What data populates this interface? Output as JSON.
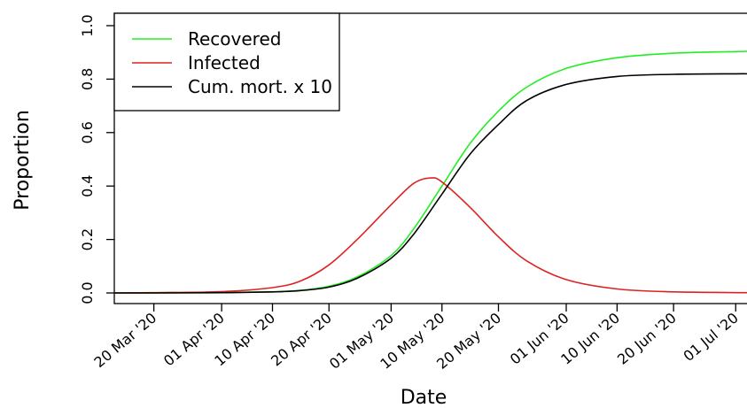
{
  "chart_data": {
    "type": "line",
    "xlabel": "Date",
    "ylabel": "Proportion",
    "ylim": [
      0.0,
      1.0
    ],
    "xlim": [
      "2020-03-13",
      "2020-07-03"
    ],
    "y_ticks": [
      {
        "value": 0.0,
        "label": "0.0"
      },
      {
        "value": 0.2,
        "label": "0.2"
      },
      {
        "value": 0.4,
        "label": "0.4"
      },
      {
        "value": 0.6,
        "label": "0.6"
      },
      {
        "value": 0.8,
        "label": "0.8"
      },
      {
        "value": 1.0,
        "label": "1.0"
      }
    ],
    "x_ticks": [
      {
        "date": "2020-03-20",
        "label": "20 Mar '20"
      },
      {
        "date": "2020-04-01",
        "label": "01 Apr '20"
      },
      {
        "date": "2020-04-10",
        "label": "10 Apr '20"
      },
      {
        "date": "2020-04-20",
        "label": "20 Apr '20"
      },
      {
        "date": "2020-05-01",
        "label": "01 May '20"
      },
      {
        "date": "2020-05-10",
        "label": "10 May '20"
      },
      {
        "date": "2020-05-20",
        "label": "20 May '20"
      },
      {
        "date": "2020-06-01",
        "label": "01 Jun '20"
      },
      {
        "date": "2020-06-10",
        "label": "10 Jun '20"
      },
      {
        "date": "2020-06-20",
        "label": "20 Jun '20"
      },
      {
        "date": "2020-07-01",
        "label": "01 Jul '20"
      }
    ],
    "legend": {
      "position": "top-left",
      "boxed": true
    },
    "grid": false,
    "series": [
      {
        "name": "Recovered",
        "color": "#22ee22",
        "points": [
          [
            "2020-03-13",
            0.0
          ],
          [
            "2020-03-20",
            0.0
          ],
          [
            "2020-04-01",
            0.001
          ],
          [
            "2020-04-10",
            0.004
          ],
          [
            "2020-04-15",
            0.01
          ],
          [
            "2020-04-20",
            0.025
          ],
          [
            "2020-04-25",
            0.06
          ],
          [
            "2020-05-01",
            0.14
          ],
          [
            "2020-05-05",
            0.24
          ],
          [
            "2020-05-10",
            0.4
          ],
          [
            "2020-05-15",
            0.56
          ],
          [
            "2020-05-20",
            0.68
          ],
          [
            "2020-05-25",
            0.77
          ],
          [
            "2020-06-01",
            0.84
          ],
          [
            "2020-06-10",
            0.88
          ],
          [
            "2020-06-20",
            0.897
          ],
          [
            "2020-07-01",
            0.903
          ],
          [
            "2020-07-03",
            0.904
          ]
        ]
      },
      {
        "name": "Infected",
        "color": "#dd2222",
        "points": [
          [
            "2020-03-13",
            0.0
          ],
          [
            "2020-03-20",
            0.001
          ],
          [
            "2020-04-01",
            0.005
          ],
          [
            "2020-04-10",
            0.02
          ],
          [
            "2020-04-15",
            0.045
          ],
          [
            "2020-04-20",
            0.105
          ],
          [
            "2020-04-25",
            0.2
          ],
          [
            "2020-05-01",
            0.33
          ],
          [
            "2020-05-05",
            0.41
          ],
          [
            "2020-05-08",
            0.43
          ],
          [
            "2020-05-10",
            0.415
          ],
          [
            "2020-05-15",
            0.32
          ],
          [
            "2020-05-20",
            0.21
          ],
          [
            "2020-05-25",
            0.12
          ],
          [
            "2020-06-01",
            0.05
          ],
          [
            "2020-06-10",
            0.015
          ],
          [
            "2020-06-20",
            0.004
          ],
          [
            "2020-07-03",
            0.001
          ]
        ]
      },
      {
        "name": "Cum. mort. x 10",
        "color": "#000000",
        "points": [
          [
            "2020-03-13",
            0.0
          ],
          [
            "2020-03-20",
            0.0
          ],
          [
            "2020-04-01",
            0.001
          ],
          [
            "2020-04-10",
            0.004
          ],
          [
            "2020-04-15",
            0.009
          ],
          [
            "2020-04-20",
            0.022
          ],
          [
            "2020-04-25",
            0.055
          ],
          [
            "2020-05-01",
            0.13
          ],
          [
            "2020-05-05",
            0.22
          ],
          [
            "2020-05-10",
            0.37
          ],
          [
            "2020-05-15",
            0.52
          ],
          [
            "2020-05-20",
            0.63
          ],
          [
            "2020-05-25",
            0.72
          ],
          [
            "2020-06-01",
            0.78
          ],
          [
            "2020-06-10",
            0.81
          ],
          [
            "2020-06-20",
            0.818
          ],
          [
            "2020-07-01",
            0.82
          ],
          [
            "2020-07-03",
            0.82
          ]
        ]
      }
    ]
  }
}
